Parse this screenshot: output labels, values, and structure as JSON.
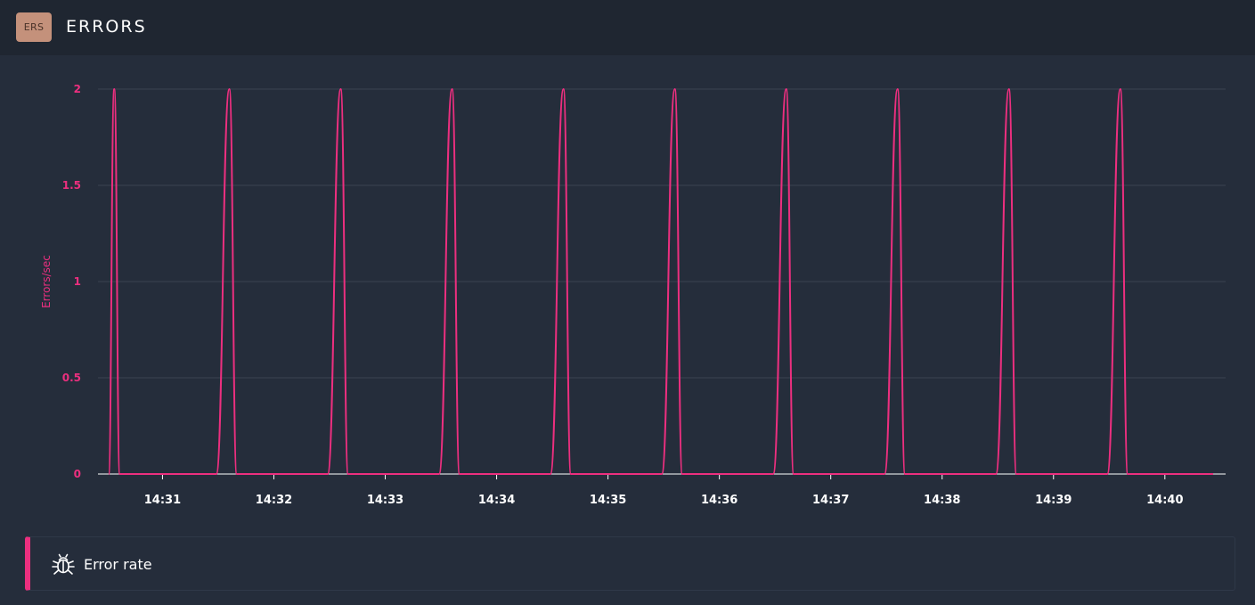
{
  "header": {
    "badge": "ERS",
    "title": "ERRORS"
  },
  "colors": {
    "accent": "#ec2f7f",
    "background": "#252d3b",
    "header_background": "#1f2631",
    "badge": "#c4917b",
    "grid": "#3a4352"
  },
  "legend": {
    "icon": "bug-icon",
    "label": "Error rate"
  },
  "chart_data": {
    "type": "line",
    "title": "",
    "xlabel": "",
    "ylabel": "Errors/sec",
    "ylim": [
      0,
      2
    ],
    "yticks": [
      "0",
      "0.5",
      "1",
      "1.5",
      "2"
    ],
    "xticks": [
      "14:31",
      "14:32",
      "14:33",
      "14:34",
      "14:35",
      "14:36",
      "14:37",
      "14:38",
      "14:39",
      "14:40"
    ],
    "xlim": [
      "14:30:31",
      "14:40:26"
    ],
    "grid": true,
    "series": [
      {
        "name": "Error rate",
        "x": [
          "14:30:31",
          "14:30:34",
          "14:30:37",
          "14:30:40",
          "14:31:29",
          "14:31:36",
          "14:31:40",
          "14:32:29",
          "14:32:36",
          "14:32:40",
          "14:33:29",
          "14:33:36",
          "14:33:40",
          "14:34:29",
          "14:34:36",
          "14:34:40",
          "14:35:29",
          "14:35:36",
          "14:35:40",
          "14:36:29",
          "14:36:36",
          "14:36:40",
          "14:37:29",
          "14:37:36",
          "14:37:40",
          "14:38:29",
          "14:38:36",
          "14:38:40",
          "14:39:29",
          "14:39:36",
          "14:39:40",
          "14:40:26"
        ],
        "y": [
          0,
          2,
          0,
          0,
          0,
          2,
          0,
          0,
          2,
          0,
          0,
          2,
          0,
          0,
          2,
          0,
          0,
          2,
          0,
          0,
          2,
          0,
          0,
          2,
          0,
          0,
          2,
          0,
          0,
          2,
          0,
          0
        ]
      }
    ]
  }
}
